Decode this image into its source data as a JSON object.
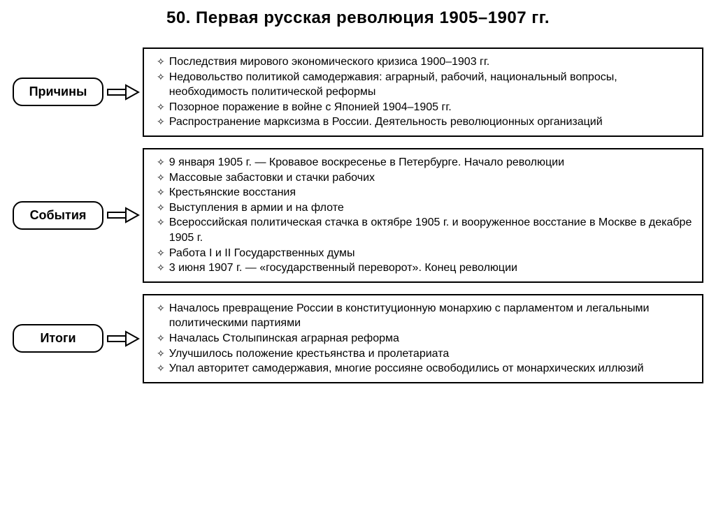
{
  "title": "50. Первая русская революция 1905–1907 гг.",
  "bullet_glyph": "✧",
  "colors": {
    "text": "#000000",
    "border": "#000000",
    "background": "#ffffff"
  },
  "rows": [
    {
      "label": "Причины",
      "items": [
        "Последствия мирового экономического кризиса 1900–1903 гг.",
        "Недовольство политикой самодержавия: аграрный, рабочий, национальный вопросы, необходимость политической реформы",
        "Позорное поражение в войне с Японией 1904–1905 гг.",
        "Распространение марксизма в России. Деятельность революционных организаций"
      ]
    },
    {
      "label": "События",
      "items": [
        "9 января 1905 г. — Кровавое воскресенье в Петербурге. Начало революции",
        "Массовые забастовки и стачки рабочих",
        "Крестьянские восстания",
        "Выступления в армии и на флоте",
        "Всероссийская политическая стачка в октябре 1905 г. и вооруженное восстание в Москве в декабре 1905 г.",
        "Работа I и II Государственных думы",
        "3 июня 1907 г. — «государственный переворот». Конец революции"
      ]
    },
    {
      "label": "Итоги",
      "items": [
        "Началось превращение России в конституционную монархию с парламентом и легальными политическими партиями",
        "Началась Столыпинская аграрная реформа",
        "Улучшилось положение крестьянства и пролетариата",
        "Упал авторитет самодержавия, многие россияне освободились от монархических иллюзий"
      ]
    }
  ]
}
